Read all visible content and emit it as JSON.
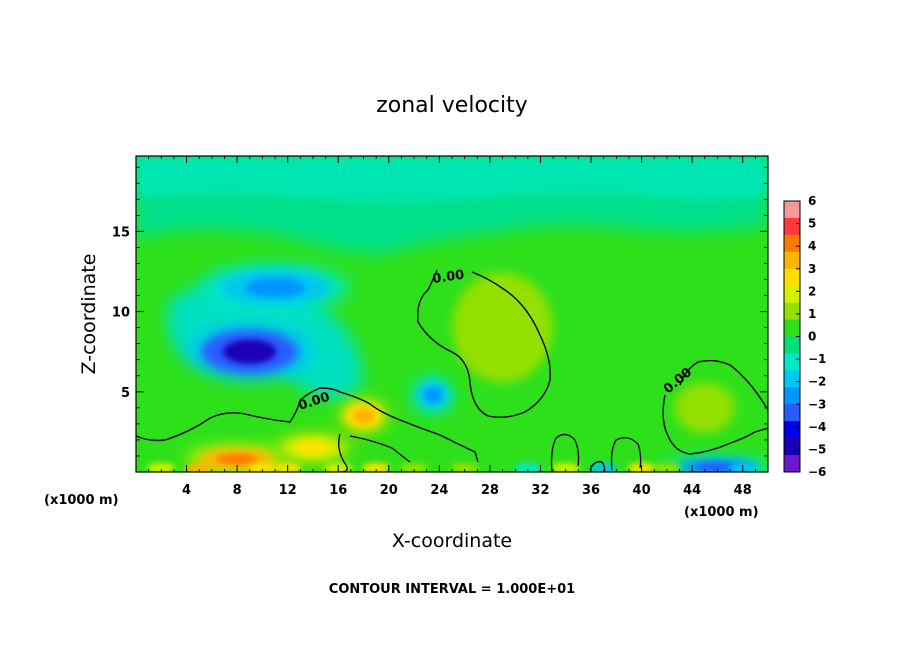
{
  "chart_data": {
    "type": "heatmap",
    "title": "zonal velocity",
    "xlabel": "X-coordinate",
    "ylabel": "Z-coordinate",
    "x_unit_label": "(x1000 m)",
    "x_ticks": [
      4,
      8,
      12,
      16,
      20,
      24,
      28,
      32,
      36,
      40,
      44,
      48
    ],
    "y_ticks": [
      5,
      10,
      15
    ],
    "xlim": [
      0,
      50
    ],
    "ylim": [
      0,
      19.7
    ],
    "colorbar": {
      "ticks": [
        6,
        5,
        4,
        3,
        2,
        1,
        0,
        -1,
        -2,
        -3,
        -4,
        -5,
        -6
      ],
      "range": [
        -6,
        6
      ],
      "colors": [
        "#f59a9a",
        "#ff3a3a",
        "#ff7a00",
        "#ffb400",
        "#ffe000",
        "#d8f000",
        "#94e000",
        "#2ee01a",
        "#00e07a",
        "#00e8c8",
        "#00c8f0",
        "#0096ff",
        "#2a5aff",
        "#0000e8",
        "#1a00b4",
        "#6a18c8"
      ]
    },
    "contour_label": "0.00",
    "contour_interval_text": "CONTOUR INTERVAL = 1.000E+01",
    "features": [
      {
        "x": 9,
        "z": 7.5,
        "u": -4.8
      },
      {
        "x": 11,
        "z": 11.5,
        "u": -2.8
      },
      {
        "x": 23.5,
        "z": 4.8,
        "u": -3
      },
      {
        "x": 18,
        "z": 3.5,
        "u": 3.5
      },
      {
        "x": 8,
        "z": 0.8,
        "u": 4.5
      },
      {
        "x": 14,
        "z": 1.5,
        "u": 3
      },
      {
        "x": 29,
        "z": 9,
        "u": 1.2
      },
      {
        "x": 45,
        "z": 4,
        "u": 1.5
      },
      {
        "x": 46,
        "z": 0.3,
        "u": -3.5
      }
    ]
  }
}
